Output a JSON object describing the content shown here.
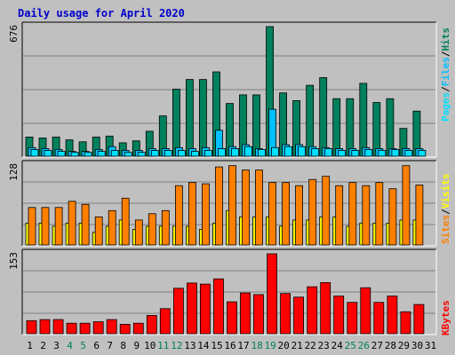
{
  "title": "Daily usage for April 2020",
  "colors": {
    "background": "#c0c0c0",
    "plot_bg": "#c0c0c0",
    "title": "#0000cc",
    "hits": "#00805c",
    "files": "#00c0ff",
    "pages": "#00e0ff",
    "visits": "#ffff00",
    "sites": "#ff8000",
    "kbytes": "#ff0000",
    "weekend_label": "#00805c",
    "weekday_label": "#000000",
    "grid": "#808080"
  },
  "legend": {
    "top_labels": [
      "Pages",
      "Files",
      "Hits"
    ],
    "middle_labels": [
      "Sites",
      "Visits"
    ],
    "bottom_labels": [
      "KBytes"
    ],
    "separator": "/"
  },
  "chart_data": [
    {
      "type": "bar",
      "panel": "hits-files-pages",
      "y_max_label": "676",
      "ylim": [
        0,
        676
      ],
      "x": [
        1,
        2,
        3,
        4,
        5,
        6,
        7,
        8,
        9,
        10,
        11,
        12,
        13,
        14,
        15,
        16,
        17,
        18,
        19,
        20,
        21,
        22,
        23,
        24,
        25,
        26,
        27,
        28,
        29,
        30
      ],
      "series": [
        {
          "name": "Hits",
          "values": [
            100,
            95,
            100,
            85,
            75,
            100,
            105,
            70,
            80,
            130,
            210,
            350,
            400,
            400,
            440,
            275,
            320,
            320,
            676,
            330,
            290,
            370,
            410,
            300,
            300,
            380,
            280,
            300,
            145,
            235
          ]
        },
        {
          "name": "Files",
          "values": [
            45,
            40,
            35,
            25,
            25,
            35,
            50,
            30,
            30,
            40,
            40,
            45,
            40,
            45,
            135,
            50,
            60,
            40,
            245,
            60,
            60,
            50,
            45,
            40,
            40,
            45,
            40,
            40,
            40,
            40
          ]
        },
        {
          "name": "Pages",
          "values": [
            35,
            30,
            25,
            20,
            20,
            25,
            30,
            20,
            20,
            30,
            30,
            30,
            25,
            30,
            40,
            40,
            50,
            35,
            45,
            50,
            50,
            40,
            40,
            30,
            30,
            35,
            30,
            35,
            30,
            30
          ]
        }
      ]
    },
    {
      "type": "bar",
      "panel": "visits-sites",
      "y_max_label": "128",
      "ylim": [
        0,
        128
      ],
      "x": [
        1,
        2,
        3,
        4,
        5,
        6,
        7,
        8,
        9,
        10,
        11,
        12,
        13,
        14,
        15,
        16,
        17,
        18,
        19,
        20,
        21,
        22,
        23,
        24,
        25,
        26,
        27,
        28,
        29,
        30
      ],
      "series": [
        {
          "name": "Sites",
          "values": [
            60,
            60,
            60,
            70,
            65,
            45,
            55,
            75,
            40,
            50,
            55,
            95,
            100,
            98,
            125,
            127,
            120,
            120,
            100,
            100,
            95,
            105,
            110,
            95,
            100,
            95,
            100,
            90,
            127,
            96
          ]
        },
        {
          "name": "Visits",
          "values": [
            35,
            35,
            30,
            35,
            35,
            20,
            30,
            40,
            25,
            30,
            30,
            30,
            30,
            25,
            35,
            55,
            45,
            45,
            45,
            30,
            40,
            40,
            45,
            45,
            30,
            35,
            35,
            35,
            40,
            40
          ]
        }
      ]
    },
    {
      "type": "bar",
      "panel": "kbytes",
      "y_max_label": "153",
      "ylim": [
        0,
        153
      ],
      "x": [
        1,
        2,
        3,
        4,
        5,
        6,
        7,
        8,
        9,
        10,
        11,
        12,
        13,
        14,
        15,
        16,
        17,
        18,
        19,
        20,
        21,
        22,
        23,
        24,
        25,
        26,
        27,
        28,
        29,
        30
      ],
      "series": [
        {
          "name": "KBytes",
          "values": [
            25,
            27,
            27,
            20,
            20,
            23,
            27,
            18,
            20,
            35,
            48,
            87,
            97,
            95,
            105,
            61,
            78,
            75,
            153,
            77,
            70,
            90,
            98,
            72,
            60,
            88,
            60,
            72,
            42,
            56
          ]
        }
      ]
    }
  ],
  "x_labels": [
    "1",
    "2",
    "3",
    "4",
    "5",
    "6",
    "7",
    "8",
    "9",
    "10",
    "11",
    "12",
    "13",
    "14",
    "15",
    "16",
    "17",
    "18",
    "19",
    "20",
    "21",
    "22",
    "23",
    "24",
    "25",
    "26",
    "27",
    "28",
    "29",
    "30",
    "31"
  ],
  "weekend_days": [
    4,
    5,
    11,
    12,
    18,
    19,
    25,
    26
  ]
}
